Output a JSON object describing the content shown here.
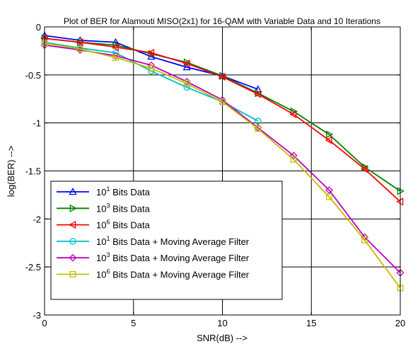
{
  "chart_data": {
    "type": "line",
    "title": "Plot of BER for Alamouti MISO(2x1) for 16-QAM with Variable Data and 10 Iterations",
    "xlabel": "SNR(dB) -->",
    "ylabel": "log(BER) -->",
    "xlim": [
      0,
      20
    ],
    "ylim": [
      -3,
      0
    ],
    "xticks": [
      0,
      5,
      10,
      15,
      20
    ],
    "yticks": [
      0,
      -0.5,
      -1,
      -1.5,
      -2,
      -2.5,
      -3
    ],
    "xtick_labels": [
      "0",
      "5",
      "10",
      "15",
      "20"
    ],
    "ytick_labels": [
      "0",
      "-0.5",
      "-1",
      "-1.5",
      "-2",
      "-2.5",
      "-3"
    ],
    "grid": true,
    "legend_position": "bottom-left",
    "series": [
      {
        "label_base": "10",
        "label_exp": "1",
        "label_rest": " Bits Data",
        "color": "#0000ff",
        "marker": "triangle-up",
        "x": [
          0,
          2,
          4,
          6,
          8,
          10,
          12
        ],
        "y": [
          -0.09,
          -0.14,
          -0.16,
          -0.31,
          -0.42,
          -0.51,
          -0.65
        ]
      },
      {
        "label_base": "10",
        "label_exp": "3",
        "label_rest": " Bits Data",
        "color": "#008000",
        "marker": "triangle-right",
        "x": [
          0,
          2,
          4,
          6,
          8,
          10,
          12,
          14,
          16,
          18,
          20
        ],
        "y": [
          -0.12,
          -0.16,
          -0.19,
          -0.28,
          -0.37,
          -0.51,
          -0.69,
          -0.88,
          -1.12,
          -1.46,
          -1.71
        ]
      },
      {
        "label_base": "10",
        "label_exp": "6",
        "label_rest": " Bits Data",
        "color": "#ff0000",
        "marker": "triangle-left",
        "x": [
          0,
          2,
          4,
          6,
          8,
          10,
          12,
          14,
          16,
          18,
          20
        ],
        "y": [
          -0.12,
          -0.16,
          -0.21,
          -0.27,
          -0.38,
          -0.52,
          -0.7,
          -0.91,
          -1.18,
          -1.48,
          -1.82
        ]
      },
      {
        "label_base": "10",
        "label_exp": "1",
        "label_rest": " Bits Data + Moving Average Filter",
        "color": "#00bfbf",
        "marker": "circle",
        "x": [
          0,
          2,
          4,
          6,
          8,
          10,
          12
        ],
        "y": [
          -0.16,
          -0.22,
          -0.27,
          -0.46,
          -0.63,
          -0.78,
          -0.98
        ]
      },
      {
        "label_base": "10",
        "label_exp": "3",
        "label_rest": " Bits Data + Moving Average Filter",
        "color": "#bf00bf",
        "marker": "diamond",
        "x": [
          0,
          2,
          4,
          6,
          8,
          10,
          12,
          14,
          16,
          18,
          20
        ],
        "y": [
          -0.19,
          -0.24,
          -0.3,
          -0.4,
          -0.57,
          -0.76,
          -1.05,
          -1.34,
          -1.7,
          -2.19,
          -2.56
        ]
      },
      {
        "label_base": "10",
        "label_exp": "6",
        "label_rest": " Bits Data + Moving Average Filter",
        "color": "#bfbf00",
        "marker": "square",
        "x": [
          0,
          2,
          4,
          6,
          8,
          10,
          12,
          14,
          16,
          18,
          20
        ],
        "y": [
          -0.17,
          -0.23,
          -0.32,
          -0.43,
          -0.59,
          -0.78,
          -1.06,
          -1.38,
          -1.77,
          -2.22,
          -2.72
        ]
      }
    ]
  }
}
